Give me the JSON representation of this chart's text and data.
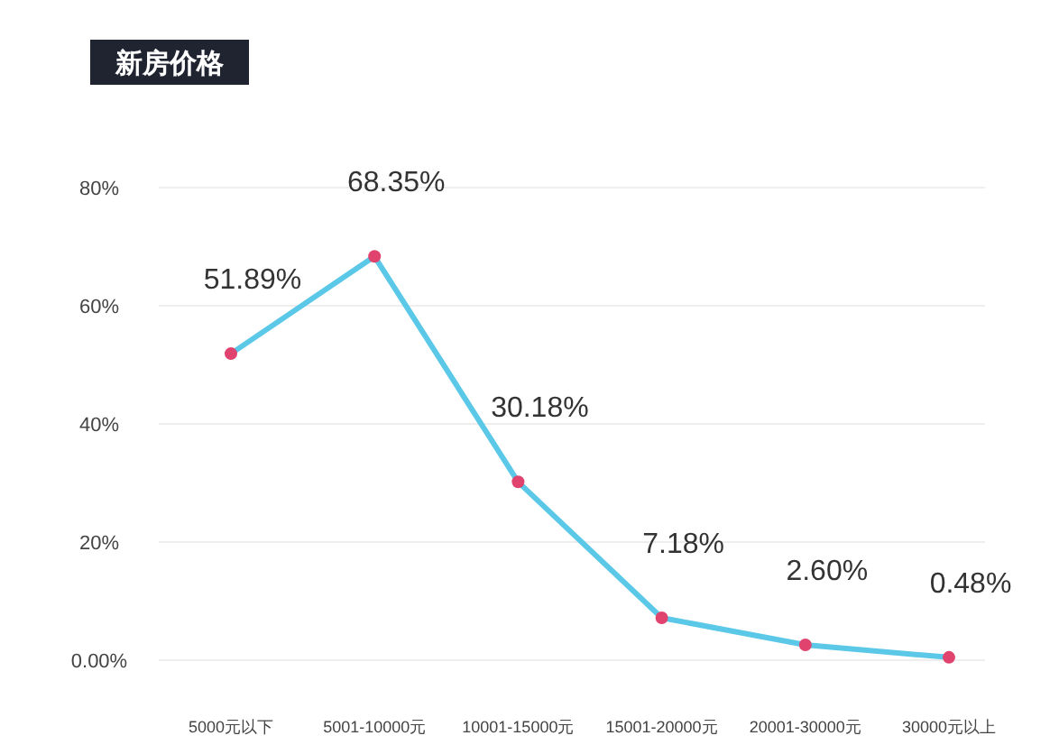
{
  "chart_data": {
    "type": "line",
    "title": "新房价格",
    "categories": [
      "5000元以下",
      "5001-10000元",
      "10001-15000元",
      "15001-20000元",
      "20001-30000元",
      "30000元以上"
    ],
    "series": [
      {
        "color": "#5bc8e8",
        "values": [
          51.89,
          68.35,
          30.18,
          7.18,
          2.6,
          0.48
        ],
        "value_labels": [
          "51.89%",
          "68.35%",
          "30.18%",
          "7.18%",
          "2.60%",
          "0.48%"
        ]
      }
    ],
    "ylim": [
      0,
      80
    ],
    "yticks": [
      {
        "value": 0,
        "label": "0.00%"
      },
      {
        "value": 20,
        "label": "20%"
      },
      {
        "value": 40,
        "label": "40%"
      },
      {
        "value": 60,
        "label": "60%"
      },
      {
        "value": 80,
        "label": "80%"
      }
    ],
    "grid": "y",
    "marker": "circle",
    "line_style": "solid"
  }
}
